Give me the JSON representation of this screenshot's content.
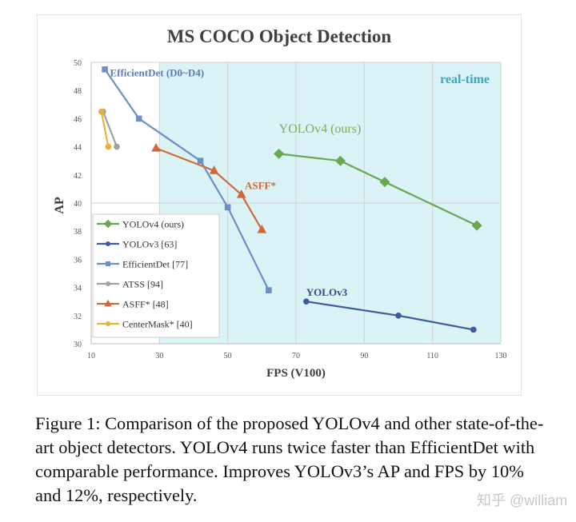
{
  "chart_data": {
    "type": "line",
    "title": "MS COCO Object Detection",
    "xlabel": "FPS (V100)",
    "ylabel": "AP",
    "xlim": [
      10,
      130
    ],
    "ylim": [
      30,
      50
    ],
    "xticks": [
      10,
      30,
      50,
      70,
      90,
      110,
      130
    ],
    "yticks": [
      30,
      32,
      34,
      36,
      38,
      40,
      42,
      44,
      46,
      48,
      50
    ],
    "grid": true,
    "realtime_region": {
      "x_from": 30,
      "label": "real-time",
      "color": "#d9f3f7"
    },
    "legend_position": "bottom-left",
    "series": [
      {
        "name": "YOLOv4 (ours)",
        "color": "#6aa84f",
        "marker": "diamond",
        "x": [
          65,
          83,
          96,
          123
        ],
        "y": [
          43.5,
          43.0,
          41.5,
          38.4
        ]
      },
      {
        "name": "YOLOv3 [63]",
        "color": "#3d5a9e",
        "marker": "circle",
        "x": [
          73,
          100,
          122
        ],
        "y": [
          33.0,
          32.0,
          31.0
        ]
      },
      {
        "name": "EfficientDet [77]",
        "color": "#6d8fc9",
        "marker": "square",
        "x": [
          14,
          24,
          42,
          50,
          62
        ],
        "y": [
          49.5,
          46.0,
          43.0,
          39.7,
          33.8
        ]
      },
      {
        "name": "ATSS [94]",
        "color": "#a0a0a0",
        "marker": "circle",
        "x": [
          13.5,
          17.5
        ],
        "y": [
          46.5,
          44.0
        ]
      },
      {
        "name": "ASFF* [48]",
        "color": "#d0683a",
        "marker": "triangle",
        "x": [
          29,
          46,
          54,
          60
        ],
        "y": [
          43.9,
          42.3,
          40.6,
          38.1
        ]
      },
      {
        "name": "CenterMask* [40]",
        "color": "#e8b23a",
        "marker": "circle",
        "x": [
          13,
          15
        ],
        "y": [
          46.5,
          44.0
        ]
      }
    ],
    "annotations": [
      {
        "text": "EfficientDet (D0~D4)",
        "x": 15.5,
        "y": 49.0,
        "color": "#5e7bb8"
      },
      {
        "text": "YOLOv4 (ours)",
        "x": 65,
        "y": 45.0,
        "color": "#7cae5a"
      },
      {
        "text": "ASFF*",
        "x": 55,
        "y": 41.0,
        "color": "#d0683a"
      },
      {
        "text": "YOLOv3",
        "x": 73,
        "y": 33.4,
        "color": "#2f4b8a"
      }
    ]
  },
  "caption": "Figure 1: Comparison of the proposed YOLOv4 and other state-of-the-art object detectors. YOLOv4 runs twice faster than EfficientDet with comparable performance. Improves YOLOv3’s AP and FPS by 10% and 12%, respectively.",
  "watermark": "知乎 @william"
}
